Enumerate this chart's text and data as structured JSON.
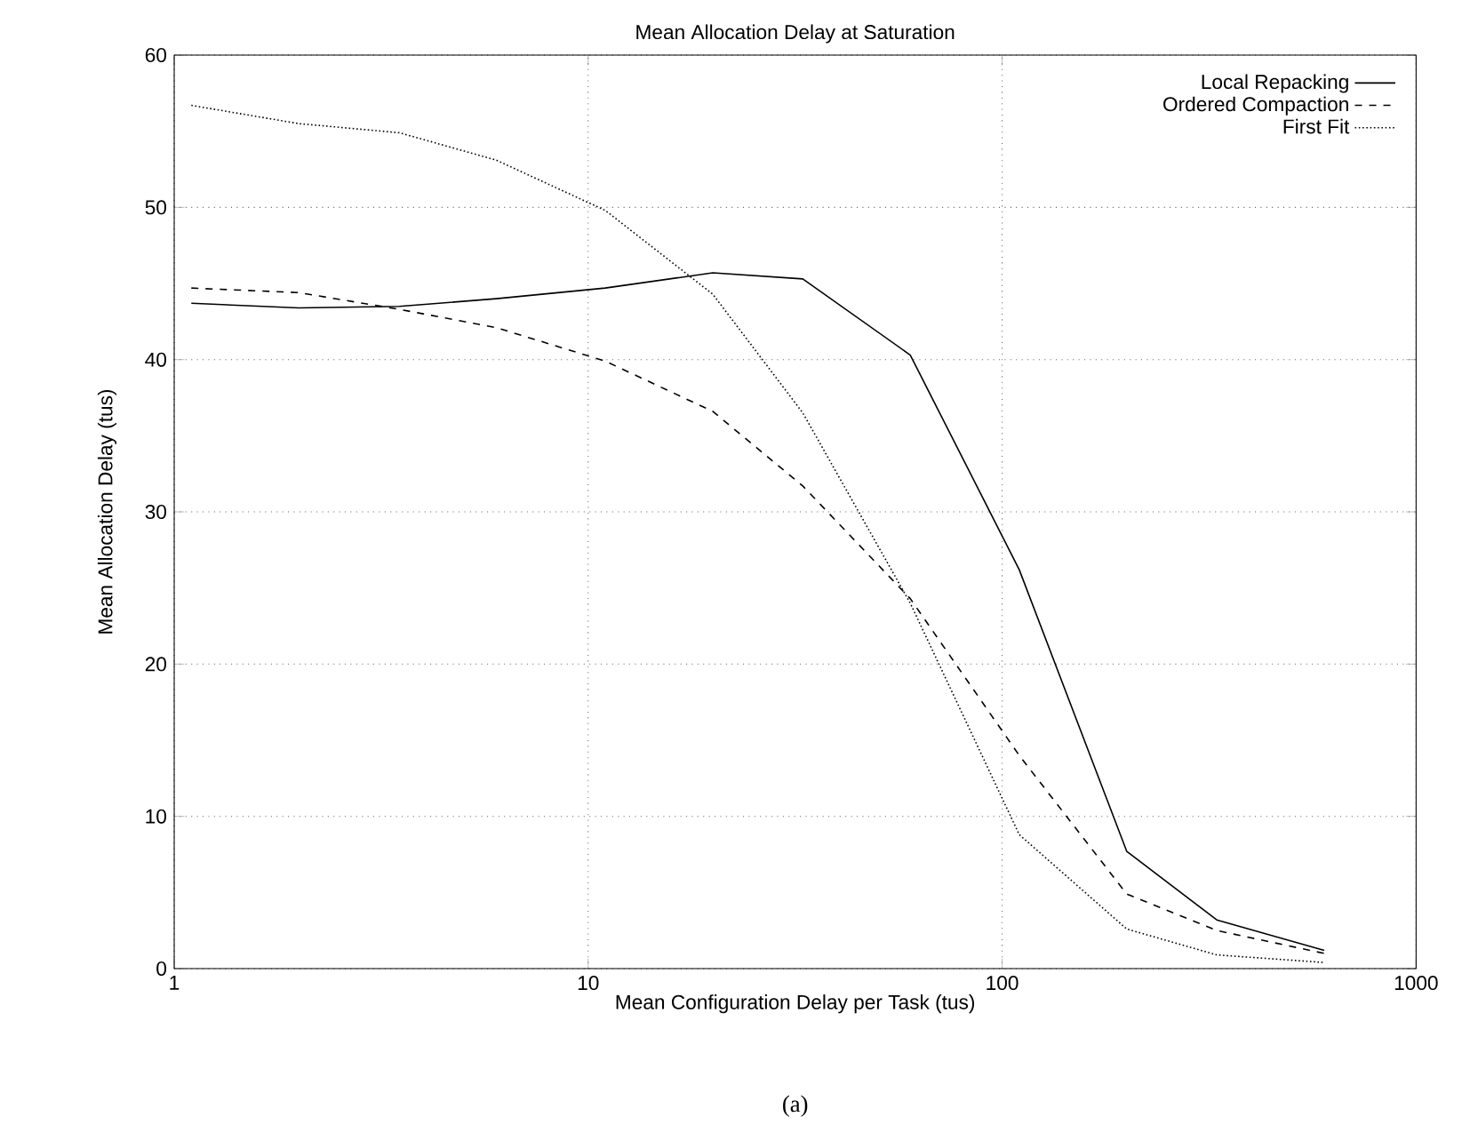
{
  "chart_data": {
    "type": "line",
    "title": "Mean Allocation Delay at Saturation",
    "xlabel": "Mean Configuration Delay per Task (tus)",
    "ylabel": "Mean Allocation Delay (tus)",
    "annotations": [
      "(a)"
    ],
    "log": "x",
    "grid": true,
    "legend": "top right",
    "xlim": [
      1,
      1000
    ],
    "xticks": [
      1,
      10,
      100,
      1000
    ],
    "ylim": [
      0,
      60
    ],
    "yticks": [
      0,
      10,
      20,
      30,
      40,
      50,
      60
    ],
    "x": [
      1.1,
      2,
      3.5,
      6,
      11,
      20,
      33,
      60,
      110,
      200,
      330,
      600
    ],
    "series": [
      {
        "name": "Local Repacking",
        "color": "#000000",
        "line_style": "solid",
        "values": [
          43.7,
          43.4,
          43.5,
          44,
          44.7,
          45.7,
          45.3,
          40.3,
          26.2,
          7.7,
          3.2,
          1.2
        ]
      },
      {
        "name": "Ordered Compaction",
        "color": "#000000",
        "line_style": "dashed",
        "values": [
          44.7,
          44.4,
          43.3,
          42.1,
          39.9,
          36.6,
          31.7,
          24.3,
          14,
          4.9,
          2.5,
          1.0
        ]
      },
      {
        "name": "First Fit",
        "color": "#000000",
        "line_style": "dotted",
        "values": [
          56.7,
          55.5,
          54.9,
          53.1,
          49.8,
          44.3,
          36.5,
          24,
          8.8,
          2.6,
          0.9,
          0.4
        ]
      }
    ]
  }
}
